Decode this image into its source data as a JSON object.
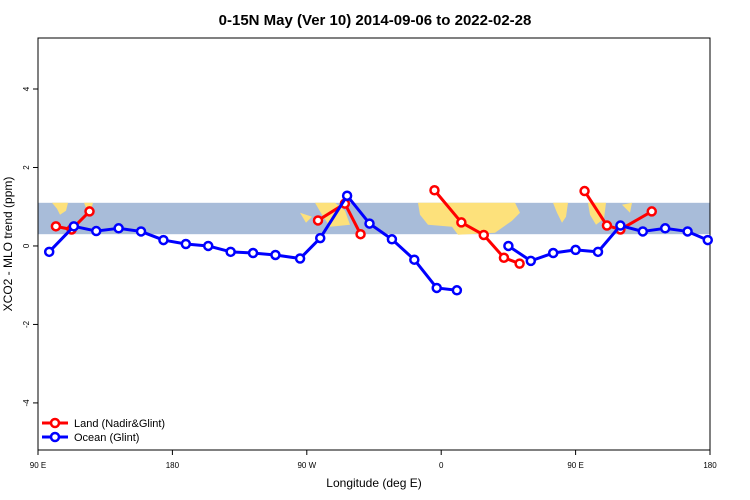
{
  "chart_data": {
    "type": "line",
    "title": "0-15N May (Ver 10)   2014-09-06 to 2022-02-28",
    "xlabel": "Longitude (deg E)",
    "ylabel": "XCO2 - MLO trend (ppm)",
    "xlim": [
      90,
      390
    ],
    "ylim": [
      -5.2,
      5.3
    ],
    "x_ticks": [
      {
        "value": 90,
        "label": "90 E"
      },
      {
        "value": 150,
        "label": "180"
      },
      {
        "value": 210,
        "label": "90 W"
      },
      {
        "value": 270,
        "label": "0"
      },
      {
        "value": 330,
        "label": "90 E"
      },
      {
        "value": 390,
        "label": "180"
      }
    ],
    "y_ticks": [
      {
        "value": -4,
        "label": "-4"
      },
      {
        "value": -2,
        "label": "-2"
      },
      {
        "value": 0,
        "label": "0"
      },
      {
        "value": 2,
        "label": "2"
      },
      {
        "value": 4,
        "label": "4"
      }
    ],
    "latitude_band": {
      "y_min": 0.3,
      "y_max": 1.1,
      "ocean_color": "#a8bcd9",
      "land_color": "#fde17b"
    },
    "grid": false,
    "legend_position": "bottom-left",
    "series": [
      {
        "name": "Land (Nadir&Glint)",
        "color": "#ff0000",
        "segments": [
          [
            [
              98,
              0.5
            ],
            [
              105,
              0.42
            ],
            [
              113,
              0.88
            ]
          ],
          [
            [
              215,
              0.65
            ],
            [
              227,
              1.08
            ],
            [
              234,
              0.3
            ]
          ],
          [
            [
              267,
              1.42
            ],
            [
              279,
              0.6
            ],
            [
              289,
              0.28
            ],
            [
              298,
              -0.3
            ],
            [
              305,
              -0.45
            ]
          ],
          [
            [
              334,
              1.4
            ],
            [
              344,
              0.52
            ],
            [
              350,
              0.42
            ],
            [
              364,
              0.88
            ]
          ]
        ]
      },
      {
        "name": "Ocean (Glint)",
        "color": "#0000ff",
        "segments": [
          [
            [
              95,
              -0.15
            ],
            [
              106,
              0.5
            ],
            [
              116,
              0.38
            ],
            [
              126,
              0.45
            ],
            [
              136,
              0.37
            ],
            [
              146,
              0.15
            ],
            [
              156,
              0.05
            ],
            [
              166,
              0.0
            ],
            [
              176,
              -0.15
            ],
            [
              186,
              -0.18
            ],
            [
              196,
              -0.23
            ],
            [
              207,
              -0.32
            ],
            [
              216,
              0.2
            ],
            [
              228,
              1.28
            ],
            [
              238,
              0.57
            ],
            [
              248,
              0.17
            ],
            [
              258,
              -0.35
            ],
            [
              268,
              -1.07
            ],
            [
              277,
              -1.13
            ]
          ],
          [
            [
              300,
              0.0
            ],
            [
              310,
              -0.38
            ],
            [
              320,
              -0.18
            ],
            [
              330,
              -0.1
            ],
            [
              340,
              -0.15
            ],
            [
              350,
              0.52
            ],
            [
              360,
              0.37
            ],
            [
              370,
              0.45
            ],
            [
              380,
              0.37
            ],
            [
              389,
              0.15
            ]
          ]
        ]
      }
    ]
  }
}
